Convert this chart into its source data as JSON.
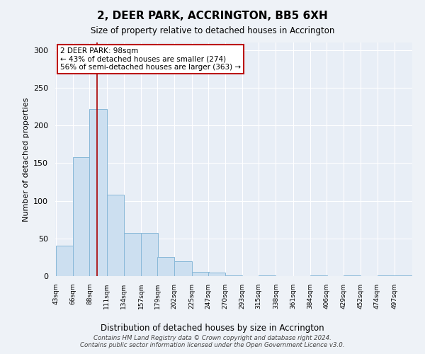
{
  "title": "2, DEER PARK, ACCRINGTON, BB5 6XH",
  "subtitle": "Size of property relative to detached houses in Accrington",
  "xlabel": "Distribution of detached houses by size in Accrington",
  "ylabel": "Number of detached properties",
  "bin_labels": [
    "43sqm",
    "66sqm",
    "88sqm",
    "111sqm",
    "134sqm",
    "157sqm",
    "179sqm",
    "202sqm",
    "225sqm",
    "247sqm",
    "270sqm",
    "293sqm",
    "315sqm",
    "338sqm",
    "361sqm",
    "384sqm",
    "406sqm",
    "429sqm",
    "452sqm",
    "474sqm",
    "497sqm"
  ],
  "bin_left_edges": [
    43,
    66,
    88,
    111,
    134,
    157,
    179,
    202,
    225,
    247,
    270,
    293,
    315,
    338,
    361,
    384,
    406,
    429,
    452,
    474,
    497
  ],
  "bin_width": 23,
  "bar_heights": [
    40,
    158,
    222,
    108,
    57,
    57,
    25,
    20,
    6,
    5,
    1,
    0,
    1,
    0,
    0,
    1,
    0,
    1,
    0,
    1,
    1
  ],
  "bar_color": "#ccdff0",
  "bar_edge_color": "#88b8d8",
  "property_size": 98,
  "vline_color": "#aa0000",
  "annotation_text": "2 DEER PARK: 98sqm\n← 43% of detached houses are smaller (274)\n56% of semi-detached houses are larger (363) →",
  "annotation_box_color": "#bb0000",
  "ylim": [
    0,
    310
  ],
  "yticks": [
    0,
    50,
    100,
    150,
    200,
    250,
    300
  ],
  "footer_line1": "Contains HM Land Registry data © Crown copyright and database right 2024.",
  "footer_line2": "Contains public sector information licensed under the Open Government Licence v3.0.",
  "bg_color": "#eef2f7",
  "plot_bg_color": "#e8eef6"
}
